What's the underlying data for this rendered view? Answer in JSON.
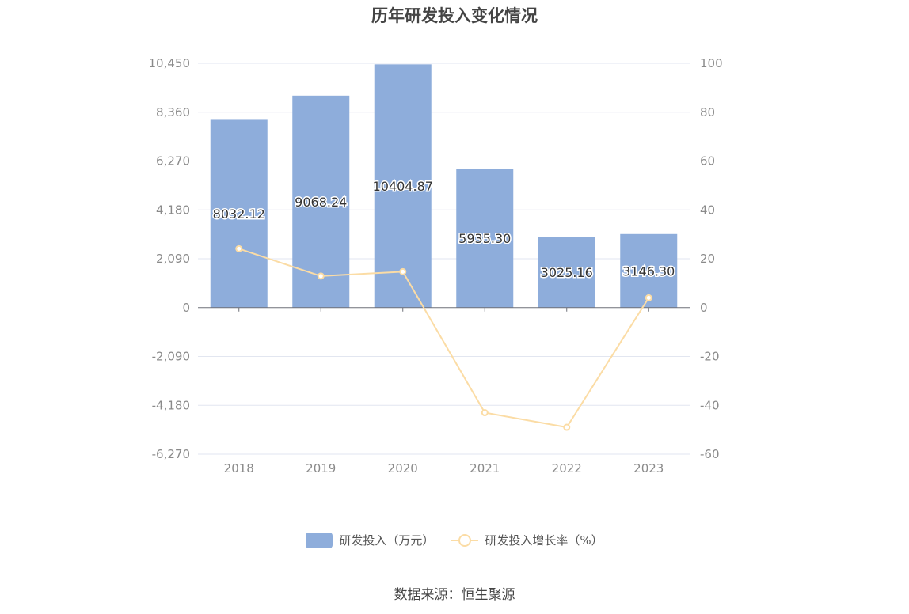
{
  "chart_data": {
    "type": "bar",
    "title": "历年研发投入变化情况",
    "categories": [
      "2018",
      "2019",
      "2020",
      "2021",
      "2022",
      "2023"
    ],
    "series": [
      {
        "name": "研发投入（万元）",
        "type": "bar",
        "axis": "left",
        "color": "#8eaddb",
        "values": [
          8032.12,
          9068.24,
          10404.87,
          5935.3,
          3025.16,
          3146.3
        ],
        "labels": [
          "8032.12",
          "9068.24",
          "10404.87",
          "5935.30",
          "3025.16",
          "3146.30"
        ]
      },
      {
        "name": "研发投入增长率（%）",
        "type": "line",
        "axis": "right",
        "color": "#fbdca5",
        "values": [
          24.1,
          12.9,
          14.7,
          -43.0,
          -49.0,
          4.0
        ]
      }
    ],
    "y_left": {
      "ylim": [
        -6270,
        10450
      ],
      "ticks": [
        10450,
        8360,
        6270,
        4180,
        2090,
        0,
        -2090,
        -4180,
        -6270
      ],
      "tick_labels": [
        "10,450",
        "8,360",
        "6,270",
        "4,180",
        "2,090",
        "0",
        "-2,090",
        "-4,180",
        "-6,270"
      ]
    },
    "y_right": {
      "ylim": [
        -60,
        100
      ],
      "ticks": [
        100,
        80,
        60,
        40,
        20,
        0,
        -20,
        -40,
        -60
      ],
      "tick_labels": [
        "100",
        "80",
        "60",
        "40",
        "20",
        "0",
        "-20",
        "-40",
        "-60"
      ]
    },
    "grid": true,
    "legend_position": "bottom"
  },
  "source": "数据来源：恒生聚源"
}
